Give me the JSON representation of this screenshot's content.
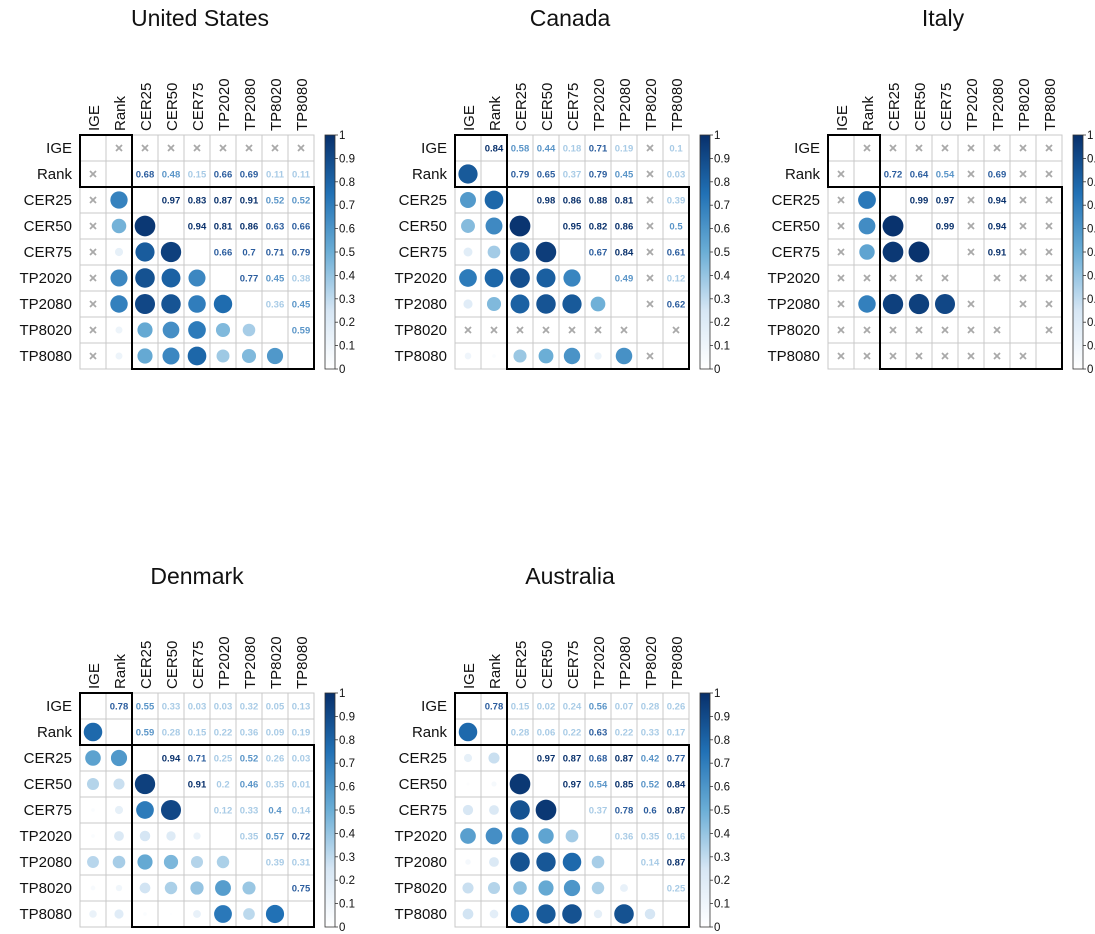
{
  "chart_data": {
    "type": "heatmap",
    "variables": [
      "IGE",
      "Rank",
      "CER25",
      "CER50",
      "CER75",
      "TP2020",
      "TP2080",
      "TP8020",
      "TP8080"
    ],
    "color_scale": {
      "min": 0,
      "max": 1,
      "ticks": [
        "0",
        "0.1",
        "0.2",
        "0.3",
        "0.4",
        "0.5",
        "0.6",
        "0.7",
        "0.8",
        "0.9",
        "1"
      ],
      "low_color": "#ffffff",
      "high_color": "#08306b"
    },
    "panels": [
      {
        "title": "United States",
        "matrix": [
          [
            null,
            "x",
            "x",
            "x",
            "x",
            "x",
            "x",
            "x",
            "x"
          ],
          [
            "x",
            null,
            0.68,
            0.48,
            0.15,
            0.66,
            0.69,
            0.11,
            0.11
          ],
          [
            "x",
            0.68,
            null,
            0.97,
            0.83,
            0.87,
            0.91,
            0.52,
            0.52
          ],
          [
            "x",
            0.48,
            0.97,
            null,
            0.94,
            0.81,
            0.86,
            0.63,
            0.66
          ],
          [
            "x",
            0.15,
            0.83,
            0.94,
            null,
            0.66,
            0.7,
            0.71,
            0.79
          ],
          [
            "x",
            0.66,
            0.87,
            0.81,
            0.66,
            null,
            0.77,
            0.45,
            0.38
          ],
          [
            "x",
            0.69,
            0.91,
            0.86,
            0.7,
            0.77,
            null,
            0.36,
            0.45
          ],
          [
            "x",
            0.11,
            0.52,
            0.63,
            0.71,
            0.45,
            0.36,
            null,
            0.59
          ],
          [
            "x",
            0.11,
            0.52,
            0.66,
            0.79,
            0.38,
            0.45,
            0.59,
            null
          ]
        ]
      },
      {
        "title": "Canada",
        "matrix": [
          [
            null,
            0.84,
            0.58,
            0.44,
            0.18,
            0.71,
            0.19,
            "x",
            0.1
          ],
          [
            0.84,
            null,
            0.79,
            0.65,
            0.37,
            0.79,
            0.45,
            "x",
            0.03
          ],
          [
            0.58,
            0.79,
            null,
            0.98,
            0.86,
            0.88,
            0.81,
            "x",
            0.39
          ],
          [
            0.44,
            0.65,
            0.98,
            null,
            0.95,
            0.82,
            0.86,
            "x",
            0.5
          ],
          [
            0.18,
            0.37,
            0.86,
            0.95,
            null,
            0.67,
            0.84,
            "x",
            0.61
          ],
          [
            0.71,
            0.79,
            0.88,
            0.82,
            0.67,
            null,
            0.49,
            "x",
            0.12
          ],
          [
            0.19,
            0.45,
            0.81,
            0.86,
            0.84,
            0.49,
            null,
            "x",
            0.62
          ],
          [
            "x",
            "x",
            "x",
            "x",
            "x",
            "x",
            "x",
            null,
            "x"
          ],
          [
            0.1,
            0.03,
            0.39,
            0.5,
            0.61,
            0.12,
            0.62,
            "x",
            null
          ]
        ]
      },
      {
        "title": "Italy",
        "matrix": [
          [
            null,
            "x",
            "x",
            "x",
            "x",
            "x",
            "x",
            "x",
            "x"
          ],
          [
            "x",
            null,
            0.72,
            0.64,
            0.54,
            "x",
            0.69,
            "x",
            "x"
          ],
          [
            "x",
            0.72,
            null,
            0.99,
            0.97,
            "x",
            0.94,
            "x",
            "x"
          ],
          [
            "x",
            0.64,
            0.99,
            null,
            0.99,
            "x",
            0.94,
            "x",
            "x"
          ],
          [
            "x",
            0.54,
            0.97,
            0.99,
            null,
            "x",
            0.91,
            "x",
            "x"
          ],
          [
            "x",
            "x",
            "x",
            "x",
            "x",
            null,
            "x",
            "x",
            "x"
          ],
          [
            "x",
            0.69,
            0.94,
            0.94,
            0.91,
            "x",
            null,
            "x",
            "x"
          ],
          [
            "x",
            "x",
            "x",
            "x",
            "x",
            "x",
            "x",
            null,
            "x"
          ],
          [
            "x",
            "x",
            "x",
            "x",
            "x",
            "x",
            "x",
            "x",
            null
          ]
        ]
      },
      {
        "title": "Denmark",
        "matrix": [
          [
            null,
            0.78,
            0.55,
            0.33,
            0.03,
            0.03,
            0.32,
            0.05,
            0.13
          ],
          [
            0.78,
            null,
            0.59,
            0.28,
            0.15,
            0.22,
            0.36,
            0.09,
            0.19
          ],
          [
            0.55,
            0.59,
            null,
            0.94,
            0.71,
            0.25,
            0.52,
            0.26,
            0.03
          ],
          [
            0.33,
            0.28,
            0.94,
            null,
            0.91,
            0.2,
            0.46,
            0.35,
            0.01
          ],
          [
            0.03,
            0.15,
            0.71,
            0.91,
            null,
            0.12,
            0.33,
            0.4,
            0.14
          ],
          [
            0.03,
            0.22,
            0.25,
            0.2,
            0.12,
            null,
            0.35,
            0.57,
            0.72
          ],
          [
            0.32,
            0.36,
            0.52,
            0.46,
            0.33,
            0.35,
            null,
            0.39,
            0.31
          ],
          [
            0.05,
            0.09,
            0.26,
            0.35,
            0.4,
            0.57,
            0.39,
            null,
            0.75
          ],
          [
            0.13,
            0.19,
            0.03,
            0.01,
            0.14,
            0.72,
            0.31,
            0.75,
            null
          ]
        ]
      },
      {
        "title": "Australia",
        "matrix": [
          [
            null,
            0.78,
            0.15,
            0.02,
            0.24,
            0.56,
            0.07,
            0.28,
            0.26
          ],
          [
            0.78,
            null,
            0.28,
            0.06,
            0.22,
            0.63,
            0.22,
            0.33,
            0.17
          ],
          [
            0.15,
            0.28,
            null,
            0.97,
            0.87,
            0.68,
            0.87,
            0.42,
            0.77
          ],
          [
            0.02,
            0.06,
            0.97,
            null,
            0.97,
            0.54,
            0.85,
            0.52,
            0.84
          ],
          [
            0.24,
            0.22,
            0.87,
            0.97,
            null,
            0.37,
            0.78,
            0.6,
            0.87
          ],
          [
            0.56,
            0.63,
            0.68,
            0.54,
            0.37,
            null,
            0.36,
            0.35,
            0.16
          ],
          [
            0.07,
            0.22,
            0.87,
            0.85,
            0.78,
            0.36,
            null,
            0.14,
            0.87
          ],
          [
            0.28,
            0.33,
            0.42,
            0.52,
            0.6,
            0.35,
            0.14,
            null,
            0.25
          ],
          [
            0.26,
            0.17,
            0.77,
            0.84,
            0.87,
            0.16,
            0.87,
            0.25,
            null
          ]
        ]
      }
    ]
  }
}
